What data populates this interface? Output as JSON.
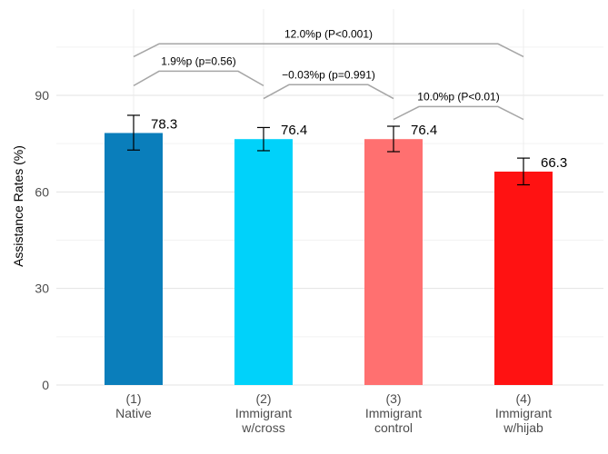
{
  "chart_data": {
    "type": "bar",
    "ylabel": "Assistance Rates (%)",
    "xlabel": "",
    "ylim": [
      0,
      110
    ],
    "yticks": [
      0,
      30,
      60,
      90
    ],
    "grid": true,
    "categories": [
      {
        "num": "(1)",
        "line1": "Native",
        "line2": ""
      },
      {
        "num": "(2)",
        "line1": "Immigrant",
        "line2": "w/cross"
      },
      {
        "num": "(3)",
        "line1": "Immigrant",
        "line2": "control"
      },
      {
        "num": "(4)",
        "line1": "Immigrant",
        "line2": "w/hijab"
      }
    ],
    "values": [
      78.3,
      76.4,
      76.4,
      66.3
    ],
    "value_labels": [
      "78.3",
      "76.4",
      "76.4",
      "66.3"
    ],
    "error_low": [
      73.0,
      72.8,
      72.5,
      62.2
    ],
    "error_high": [
      83.8,
      80.0,
      80.4,
      70.5
    ],
    "colors": [
      "#0a7ebb",
      "#00d2fa",
      "#ff7070",
      "#ff1212"
    ],
    "comparisons": [
      {
        "from": 0,
        "to": 1,
        "label": "1.9%p (p=0.56)",
        "y_low": 93,
        "y_high": 97.5
      },
      {
        "from": 1,
        "to": 2,
        "label": "−0.03%p (p=0.991)",
        "y_low": 89,
        "y_high": 93.3
      },
      {
        "from": 2,
        "to": 3,
        "label": "10.0%p (P<0.01)",
        "y_low": 82.5,
        "y_high": 86.5
      },
      {
        "from": 0,
        "to": 3,
        "label": "12.0%p (P<0.001)",
        "y_low": 102,
        "y_high": 106
      }
    ]
  }
}
